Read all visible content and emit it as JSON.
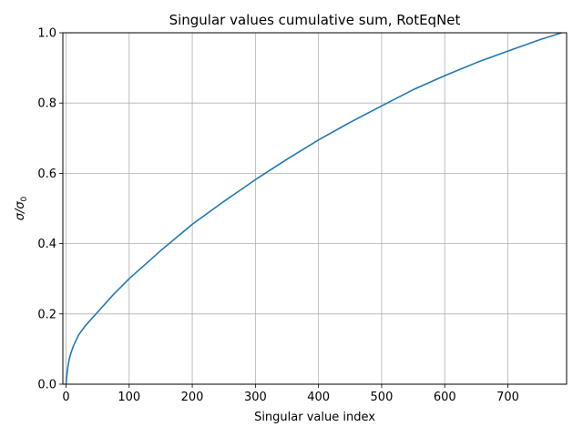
{
  "chart_data": {
    "type": "line",
    "title": "Singular values cumulative sum, RotEqNet",
    "xlabel": "Singular value index",
    "ylabel_base": "σ/σ",
    "ylabel_subscript": "0",
    "xlim": [
      -5,
      793
    ],
    "ylim": [
      0,
      1
    ],
    "xticks": [
      0,
      100,
      200,
      300,
      400,
      500,
      600,
      700
    ],
    "yticks": [
      0.0,
      0.2,
      0.4,
      0.6,
      0.8,
      1.0
    ],
    "ytick_labels": [
      "0.0",
      "0.2",
      "0.4",
      "0.6",
      "0.8",
      "1.0"
    ],
    "grid": true,
    "series": [
      {
        "color": "#1f77b4",
        "x": [
          0,
          1,
          2,
          3,
          5,
          8,
          12,
          20,
          30,
          50,
          75,
          100,
          150,
          200,
          250,
          300,
          350,
          400,
          450,
          500,
          550,
          600,
          650,
          700,
          750,
          785
        ],
        "y": [
          0.0,
          0.02,
          0.035,
          0.05,
          0.07,
          0.09,
          0.11,
          0.14,
          0.165,
          0.205,
          0.255,
          0.3,
          0.38,
          0.455,
          0.52,
          0.582,
          0.64,
          0.695,
          0.745,
          0.792,
          0.838,
          0.878,
          0.915,
          0.948,
          0.98,
          1.0
        ]
      }
    ]
  }
}
